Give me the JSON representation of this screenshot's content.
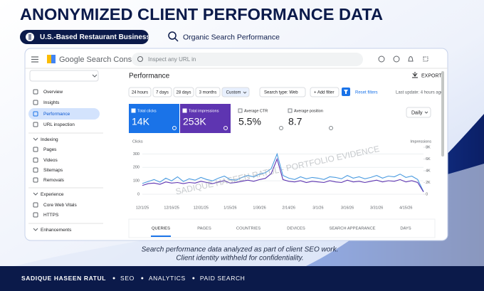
{
  "header": {
    "title": "ANONYMIZED CLIENT PERFORMANCE DATA",
    "badge": "U.S.-Based Restaurant Business",
    "subtitle": "Organic Search Performance"
  },
  "console": {
    "product": "Google Search Console",
    "search_placeholder": "Inspect any URL in",
    "nav": [
      {
        "label": "Overview"
      },
      {
        "label": "Insights"
      },
      {
        "label": "Performance",
        "active": true
      },
      {
        "label": "URL inspection"
      },
      {
        "label": "Indexing",
        "section": true
      },
      {
        "label": "Pages"
      },
      {
        "label": "Videos"
      },
      {
        "label": "Sitemaps"
      },
      {
        "label": "Removals"
      },
      {
        "label": "Experience",
        "section": true
      },
      {
        "label": "Core Web Vitals"
      },
      {
        "label": "HTTPS"
      },
      {
        "label": "Enhancements",
        "section": true
      }
    ],
    "page_title": "Performance",
    "export": "EXPORT",
    "date_filters": [
      "24 hours",
      "7 days",
      "28 days",
      "3 months",
      "Custom"
    ],
    "active_filter": 4,
    "search_type": "Search type: Web",
    "add_filter": "+ Add filter",
    "reset": "Reset filters",
    "last_update": "Last update: 4 hours ago",
    "metrics": [
      {
        "label": "Total clicks",
        "value": "14K",
        "color": "#1a73e8"
      },
      {
        "label": "Total impressions",
        "value": "253K",
        "color": "#5e35b1"
      },
      {
        "label": "Average CTR",
        "value": "5.5%"
      },
      {
        "label": "Average position",
        "value": "8.7"
      }
    ],
    "granularity": "Daily",
    "tabs": [
      "QUERIES",
      "PAGES",
      "COUNTRIES",
      "DEVICES",
      "SEARCH APPEARANCE",
      "DAYS"
    ]
  },
  "chart_data": {
    "type": "line",
    "ylabel": "Clicks",
    "y2label": "Impressions",
    "categories": [
      "12/1/25",
      null,
      null,
      null,
      null,
      "12/16/25",
      null,
      null,
      null,
      null,
      "12/31/25",
      null,
      null,
      null,
      null,
      "1/15/26",
      null,
      null,
      null,
      null,
      "1/30/26",
      null,
      null,
      null,
      null,
      "2/14/26",
      null,
      null,
      null,
      null,
      "3/1/26",
      null,
      null,
      null,
      null,
      "3/16/26",
      null,
      null,
      null,
      null,
      "3/31/26",
      null,
      null,
      null,
      null,
      "4/15/26",
      null,
      null,
      null
    ],
    "ylim": [
      0,
      350
    ],
    "yticks": [
      0,
      100,
      200,
      300
    ],
    "y2lim": [
      0,
      8000
    ],
    "y2ticks": [
      0,
      {
        "value": 2000,
        "label": "2K"
      },
      {
        "value": 4000,
        "label": "4K"
      },
      {
        "value": 6000,
        "label": "6K"
      },
      {
        "value": 8000,
        "label": "8K"
      }
    ],
    "grid": true,
    "series": [
      {
        "name": "Clicks",
        "color": "#4a9be0",
        "values": [
          80,
          95,
          110,
          90,
          120,
          100,
          130,
          95,
          115,
          105,
          125,
          110,
          100,
          120,
          135,
          110,
          105,
          125,
          140,
          130,
          150,
          160,
          190,
          300,
          140,
          120,
          110,
          130,
          115,
          125,
          120,
          110,
          130,
          125,
          115,
          140,
          120,
          130,
          115,
          125,
          140,
          120,
          135,
          130,
          150,
          125,
          135,
          110,
          20
        ]
      },
      {
        "name": "Impressions",
        "color": "#5e35b1",
        "axis": "y2",
        "values": [
          1500,
          1800,
          1900,
          1700,
          2100,
          1900,
          2000,
          1800,
          2000,
          1900,
          2200,
          2000,
          1800,
          2100,
          2300,
          1900,
          2000,
          2200,
          2400,
          2200,
          2500,
          2700,
          3500,
          6000,
          2500,
          2200,
          2100,
          2300,
          2000,
          2200,
          2100,
          2000,
          2300,
          2100,
          2000,
          2400,
          2100,
          2200,
          2000,
          2200,
          2400,
          2100,
          2300,
          2200,
          2500,
          2100,
          2300,
          2000,
          400
        ]
      }
    ]
  },
  "watermark": "SADIQUE HASEEN RATUL - PORTFOLIO EVIDENCE",
  "caption": [
    "Search performance data analyzed as part of client SEO work.",
    "Client identity withheld for confidentiality."
  ],
  "footer": [
    "SADIQUE HASEEN RATUL",
    "SEO",
    "ANALYTICS",
    "PAID SEARCH"
  ]
}
